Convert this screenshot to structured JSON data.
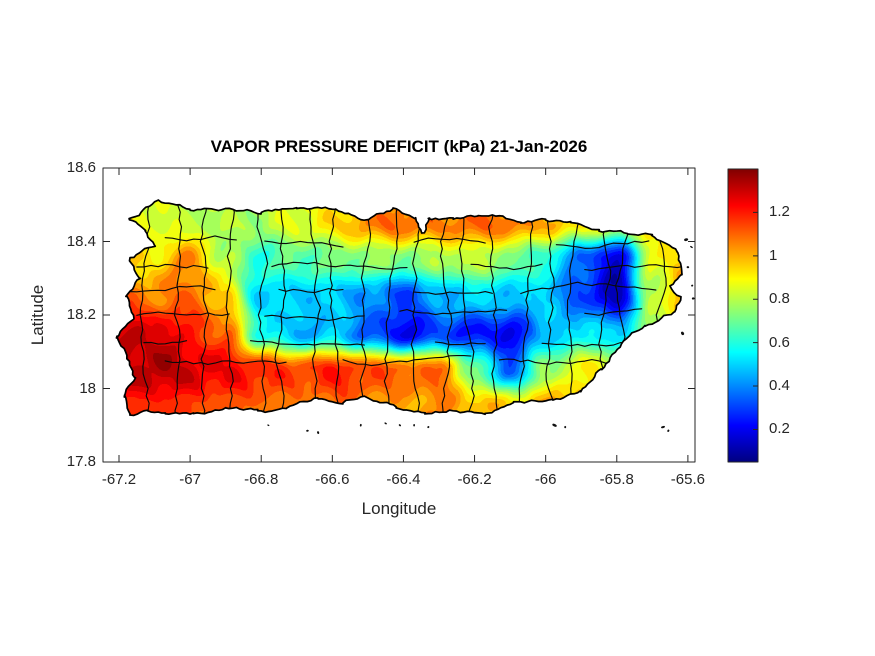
{
  "chart": {
    "title": "VAPOR PRESSURE DEFICIT (kPa) 21-Jan-2026",
    "xlabel": "Longitude",
    "ylabel": "Latitude"
  },
  "colors": {
    "text": "#262626",
    "axis": "#262626",
    "coastline": "#000000",
    "boundary": "#0a0a0a",
    "background": "#ffffff"
  },
  "chart_data": {
    "type": "heatmap",
    "title": "VAPOR PRESSURE DEFICIT (kPa) 21-Jan-2026",
    "variable": "Vapor Pressure Deficit",
    "units": "kPa",
    "date": "21-Jan-2026",
    "region": "Puerto Rico",
    "xlabel": "Longitude",
    "ylabel": "Latitude",
    "xlim": [
      -67.245,
      -65.58
    ],
    "ylim": [
      17.8,
      18.6
    ],
    "grid_on": false,
    "xticks": [
      -67.2,
      -67.0,
      -66.8,
      -66.6,
      -66.4,
      -66.2,
      -66.0,
      -65.8,
      -65.6
    ],
    "xtick_labels": [
      "-67.2",
      "-67",
      "-66.8",
      "-66.6",
      "-66.4",
      "-66.2",
      "-66",
      "-65.8",
      "-65.6"
    ],
    "yticks": [
      17.8,
      18.0,
      18.2,
      18.4,
      18.6
    ],
    "ytick_labels": [
      "17.8",
      "18",
      "18.2",
      "18.4",
      "18.6"
    ],
    "colorbar": {
      "colormap": "jet",
      "position": "right",
      "clim": [
        0.05,
        1.4
      ],
      "ticks": [
        0.2,
        0.4,
        0.6,
        0.8,
        1.0,
        1.2
      ],
      "tick_labels": [
        "0.2",
        "0.4",
        "0.6",
        "0.8",
        "1",
        "1.2"
      ]
    },
    "grid": {
      "lon": [
        -67.3,
        -67.2,
        -67.1,
        -67.0,
        -66.9,
        -66.8,
        -66.7,
        -66.6,
        -66.5,
        -66.4,
        -66.3,
        -66.2,
        -66.1,
        -66.0,
        -65.9,
        -65.8,
        -65.7,
        -65.6,
        -65.5
      ],
      "lat": [
        18.55,
        18.45,
        18.35,
        18.25,
        18.15,
        18.05,
        17.95,
        17.85
      ],
      "values_kpa": [
        [
          0.85,
          0.88,
          0.85,
          0.8,
          0.82,
          0.85,
          0.88,
          0.92,
          1.0,
          1.05,
          1.02,
          1.05,
          1.05,
          1.0,
          0.95,
          0.9,
          0.92,
          0.95,
          0.95
        ],
        [
          0.9,
          0.9,
          0.85,
          0.8,
          0.78,
          0.78,
          0.85,
          0.92,
          1.05,
          1.1,
          1.05,
          1.1,
          1.08,
          1.0,
          0.92,
          0.85,
          0.92,
          1.0,
          0.98
        ],
        [
          0.95,
          0.95,
          0.92,
          1.05,
          0.78,
          0.62,
          0.68,
          0.7,
          0.75,
          0.72,
          0.78,
          0.82,
          0.72,
          0.6,
          0.35,
          0.15,
          0.85,
          1.0,
          1.0
        ],
        [
          1.1,
          1.12,
          1.05,
          1.1,
          0.95,
          0.5,
          0.5,
          0.48,
          0.42,
          0.3,
          0.45,
          0.52,
          0.48,
          0.5,
          0.3,
          0.12,
          0.8,
          1.05,
          1.0
        ],
        [
          1.25,
          1.3,
          1.3,
          1.2,
          1.1,
          0.6,
          0.45,
          0.5,
          0.35,
          0.2,
          0.3,
          0.25,
          0.2,
          0.45,
          0.55,
          0.5,
          0.75,
          0.95,
          1.0
        ],
        [
          1.2,
          1.3,
          1.35,
          1.3,
          1.25,
          1.2,
          1.15,
          1.2,
          1.15,
          1.1,
          1.1,
          0.7,
          0.35,
          0.75,
          0.9,
          0.9,
          0.9,
          0.95,
          1.0
        ],
        [
          1.1,
          1.15,
          1.2,
          1.15,
          1.12,
          1.1,
          1.05,
          1.1,
          1.05,
          1.0,
          1.05,
          1.0,
          0.95,
          1.0,
          1.0,
          0.95,
          0.95,
          0.95,
          1.0
        ],
        [
          1.05,
          1.1,
          1.1,
          1.08,
          1.05,
          1.05,
          1.0,
          1.0,
          1.0,
          0.95,
          1.0,
          0.95,
          0.92,
          0.95,
          0.95,
          0.9,
          0.9,
          0.9,
          0.95
        ]
      ]
    },
    "coastline_lonlat": [
      [
        -67.17,
        18.46
      ],
      [
        -67.09,
        18.51
      ],
      [
        -67.0,
        18.49
      ],
      [
        -66.9,
        18.49
      ],
      [
        -66.8,
        18.48
      ],
      [
        -66.7,
        18.49
      ],
      [
        -66.59,
        18.49
      ],
      [
        -66.5,
        18.46
      ],
      [
        -66.43,
        18.49
      ],
      [
        -66.365,
        18.465
      ],
      [
        -66.345,
        18.425
      ],
      [
        -66.33,
        18.465
      ],
      [
        -66.26,
        18.46
      ],
      [
        -66.19,
        18.47
      ],
      [
        -66.12,
        18.47
      ],
      [
        -66.07,
        18.45
      ],
      [
        -66.0,
        18.46
      ],
      [
        -65.93,
        18.45
      ],
      [
        -65.85,
        18.43
      ],
      [
        -65.77,
        18.42
      ],
      [
        -65.7,
        18.42
      ],
      [
        -65.63,
        18.37
      ],
      [
        -65.615,
        18.31
      ],
      [
        -65.65,
        18.28
      ],
      [
        -65.62,
        18.25
      ],
      [
        -65.64,
        18.21
      ],
      [
        -65.72,
        18.17
      ],
      [
        -65.78,
        18.13
      ],
      [
        -65.84,
        18.05
      ],
      [
        -65.9,
        17.99
      ],
      [
        -65.98,
        17.97
      ],
      [
        -66.09,
        17.96
      ],
      [
        -66.17,
        17.93
      ],
      [
        -66.25,
        17.94
      ],
      [
        -66.34,
        17.93
      ],
      [
        -66.42,
        17.95
      ],
      [
        -66.51,
        17.98
      ],
      [
        -66.57,
        17.96
      ],
      [
        -66.64,
        17.97
      ],
      [
        -66.73,
        17.95
      ],
      [
        -66.81,
        17.94
      ],
      [
        -66.9,
        17.95
      ],
      [
        -66.99,
        17.93
      ],
      [
        -67.07,
        17.93
      ],
      [
        -67.12,
        17.94
      ],
      [
        -67.17,
        17.93
      ],
      [
        -67.19,
        17.98
      ],
      [
        -67.155,
        18.03
      ],
      [
        -67.18,
        18.09
      ],
      [
        -67.21,
        18.14
      ],
      [
        -67.16,
        18.19
      ],
      [
        -67.18,
        18.25
      ],
      [
        -67.14,
        18.3
      ],
      [
        -67.165,
        18.35
      ],
      [
        -67.1,
        18.39
      ],
      [
        -67.125,
        18.43
      ]
    ],
    "islets_lonlat": [
      [
        -66.67,
        17.885,
        1.6
      ],
      [
        -66.64,
        17.88,
        1.2
      ],
      [
        -66.52,
        17.9,
        1.3
      ],
      [
        -66.45,
        17.905,
        1.1
      ],
      [
        -66.41,
        17.9,
        1.0
      ],
      [
        -66.37,
        17.9,
        1.2
      ],
      [
        -66.33,
        17.895,
        1.0
      ],
      [
        -65.975,
        17.9,
        1.8
      ],
      [
        -65.945,
        17.895,
        1.3
      ],
      [
        -65.67,
        17.895,
        1.6
      ],
      [
        -65.655,
        17.885,
        1.1
      ],
      [
        -65.605,
        18.405,
        1.5
      ],
      [
        -65.59,
        18.385,
        1.2
      ],
      [
        -65.6,
        18.33,
        1.3
      ],
      [
        -65.588,
        18.28,
        1.1
      ],
      [
        -65.585,
        18.245,
        1.3
      ],
      [
        -65.615,
        18.15,
        1.5
      ],
      [
        -66.78,
        17.9,
        1.1
      ]
    ]
  }
}
